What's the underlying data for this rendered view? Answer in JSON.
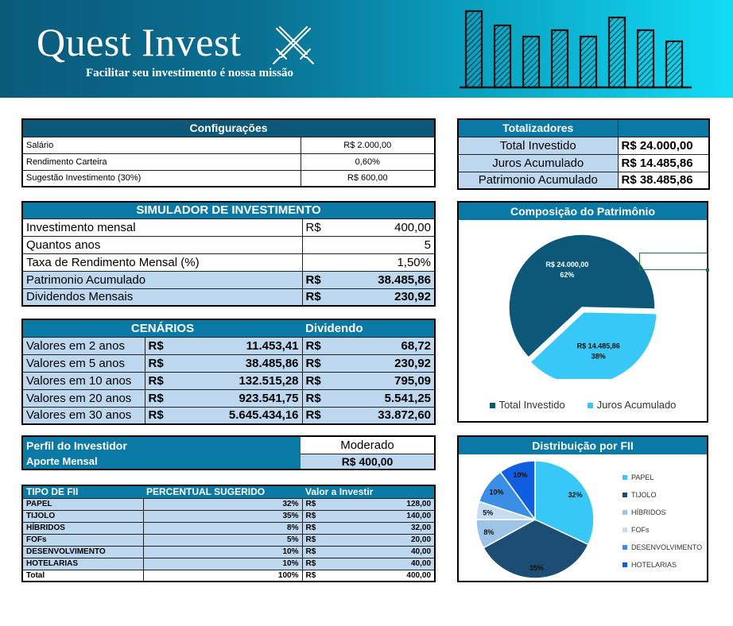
{
  "header": {
    "title": "Quest Invest",
    "subtitle": "Facilitar seu investimento é nossa missão",
    "logo_icon": "crossed-swords-icon"
  },
  "config": {
    "title": "Configurações",
    "rows": [
      {
        "label": "Salário",
        "value": "R$ 2.000,00"
      },
      {
        "label": "Rendimento Carteira",
        "value": "0,60%"
      },
      {
        "label": "Sugestão Investimento (30%)",
        "value": "R$ 600,00"
      }
    ]
  },
  "totalizadores": {
    "title": "Totalizadores",
    "rows": [
      {
        "label": "Total Investido",
        "value": "R$  24.000,00"
      },
      {
        "label": "Juros Acumulado",
        "value": "R$  14.485,86"
      },
      {
        "label": "Patrimonio Acumulado",
        "value": "R$  38.485,86"
      }
    ]
  },
  "simulador": {
    "title": "SIMULADOR DE INVESTIMENTO",
    "inputs": [
      {
        "label": "Investimento mensal",
        "prefix": "R$",
        "value": "400,00"
      },
      {
        "label": "Quantos anos",
        "prefix": "",
        "value": "5"
      },
      {
        "label": "Taxa de Rendimento Mensal (%)",
        "prefix": "",
        "value": "1,50%"
      }
    ],
    "results": [
      {
        "label": "Patrimonio Acumulado",
        "prefix": "R$",
        "value": "38.485,86"
      },
      {
        "label": "Dividendos Mensais",
        "prefix": "R$",
        "value": "230,92"
      }
    ]
  },
  "cenarios": {
    "title": "CENÁRIOS",
    "dividend_title": "Dividendo",
    "rows": [
      {
        "label": "Valores em 2 anos",
        "cur": "R$",
        "value": "11.453,41",
        "dcur": "R$",
        "dividend": "68,72"
      },
      {
        "label": "Valores em 5 anos",
        "cur": "R$",
        "value": "38.485,86",
        "dcur": "R$",
        "dividend": "230,92"
      },
      {
        "label": "Valores em 10 anos",
        "cur": "R$",
        "value": "132.515,28",
        "dcur": "R$",
        "dividend": "795,09"
      },
      {
        "label": "Valores em 20 anos",
        "cur": "R$",
        "value": "923.541,75",
        "dcur": "R$",
        "dividend": "5.541,25"
      },
      {
        "label": "Valores em 30 anos",
        "cur": "R$",
        "value": "5.645.434,16",
        "dcur": "R$",
        "dividend": "33.872,60"
      }
    ]
  },
  "perfil": {
    "label": "Perfil do Investidor",
    "value": "Moderado",
    "aporte_label": "Aporte Mensal",
    "aporte_value": "R$ 400,00"
  },
  "fii": {
    "headers": [
      "TIPO DE FII",
      "PERCENTUAL SUGERIDO",
      "Valor a Investir"
    ],
    "rows": [
      {
        "tipo": "PAPEL",
        "pct": "32%",
        "cur": "R$",
        "valor": "128,00"
      },
      {
        "tipo": "TIJOLO",
        "pct": "35%",
        "cur": "R$",
        "valor": "140,00"
      },
      {
        "tipo": "HÍBRIDOS",
        "pct": "8%",
        "cur": "R$",
        "valor": "32,00"
      },
      {
        "tipo": "FOFs",
        "pct": "5%",
        "cur": "R$",
        "valor": "20,00"
      },
      {
        "tipo": "DESENVOLVIMENTO",
        "pct": "10%",
        "cur": "R$",
        "valor": "40,00"
      },
      {
        "tipo": "HOTELARIAS",
        "pct": "10%",
        "cur": "R$",
        "valor": "40,00"
      },
      {
        "tipo": "Total",
        "pct": "100%",
        "cur": "R$",
        "valor": "400,00"
      }
    ]
  },
  "chart_data": [
    {
      "type": "pie",
      "title": "Composição do Patrimônio",
      "categories": [
        "Total Investido",
        "Juros Acumulado"
      ],
      "values": [
        24000.0,
        14485.86
      ],
      "labels": [
        [
          "R$ 24.000,00",
          "62%"
        ],
        [
          "R$ 14.485,86",
          "38%"
        ]
      ],
      "colors": [
        "#0d5878",
        "#38c8f8"
      ],
      "legend": "bottom"
    },
    {
      "type": "pie",
      "title": "Distribuição por FII",
      "categories": [
        "PAPEL",
        "TIJOLO",
        "HÍBRIDOS",
        "FOFs",
        "DESENVOLVIMENTO",
        "HOTELARIAS"
      ],
      "values": [
        32,
        35,
        8,
        5,
        10,
        10
      ],
      "labels": [
        "32%",
        "35%",
        "8%",
        "5%",
        "10%",
        "10%"
      ],
      "colors": [
        "#38c8f8",
        "#1c4d72",
        "#9dc3e6",
        "#c5ddf2",
        "#3a8ee6",
        "#0f5fe0"
      ],
      "legend": "right"
    }
  ]
}
